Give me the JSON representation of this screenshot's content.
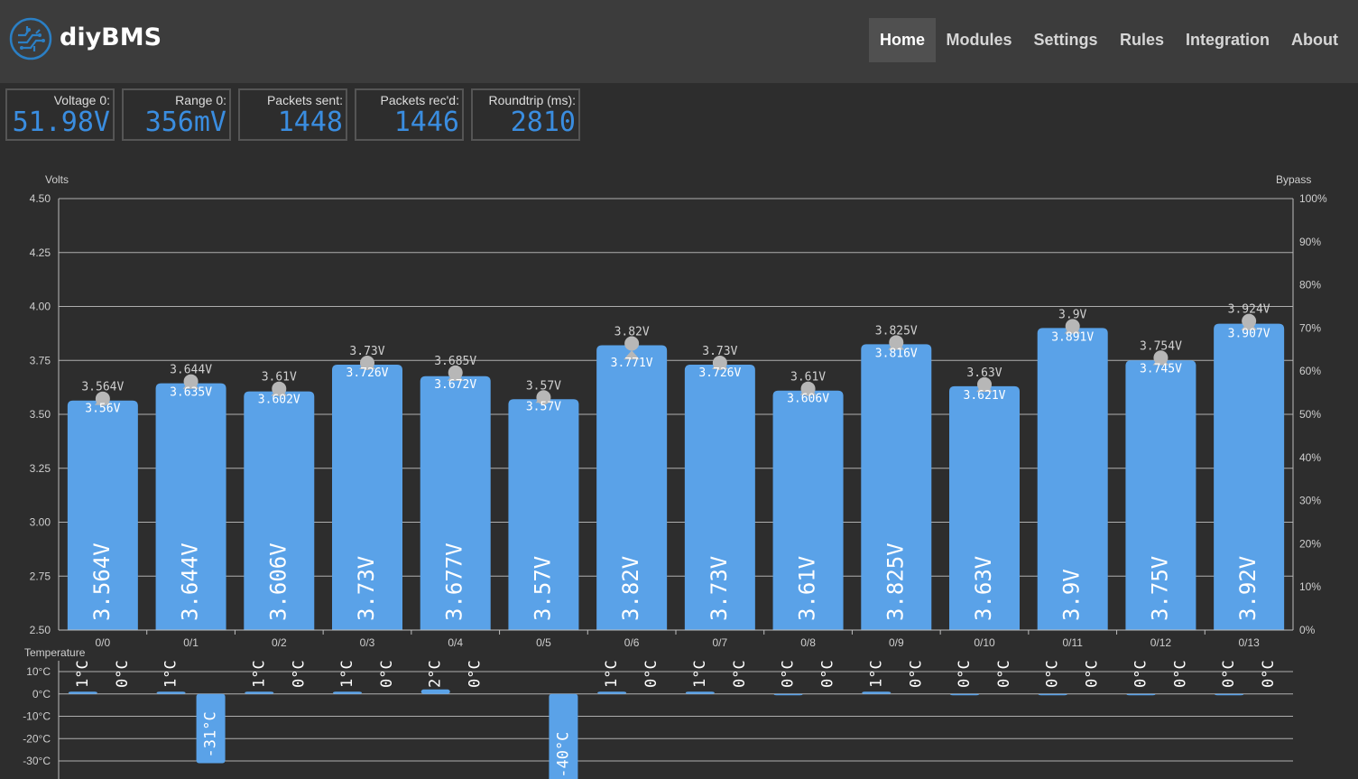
{
  "header": {
    "brand": "diyBMS",
    "nav": [
      {
        "label": "Home",
        "active": true
      },
      {
        "label": "Modules",
        "active": false
      },
      {
        "label": "Settings",
        "active": false
      },
      {
        "label": "Rules",
        "active": false
      },
      {
        "label": "Integration",
        "active": false
      },
      {
        "label": "About",
        "active": false
      }
    ]
  },
  "stats": [
    {
      "label": "Voltage 0:",
      "value": "51.98V"
    },
    {
      "label": "Range 0:",
      "value": "356mV"
    },
    {
      "label": "Packets sent:",
      "value": "1448"
    },
    {
      "label": "Packets rec'd:",
      "value": "1446"
    },
    {
      "label": "Roundtrip (ms):",
      "value": "2810"
    }
  ],
  "colors": {
    "bar": "#5aa2e8",
    "accent": "#3a8de0",
    "marker": "#b7b7b7",
    "grid": "#bdbdbd"
  },
  "chart_data": {
    "type": "bar",
    "ylabel": "Volts",
    "y2label": "Bypass",
    "ylim": [
      2.5,
      4.5
    ],
    "yticks": [
      "4.50",
      "4.25",
      "4.00",
      "3.75",
      "3.50",
      "3.25",
      "3.00",
      "2.75",
      "2.50"
    ],
    "y2lim": [
      0,
      100
    ],
    "y2ticks": [
      "100%",
      "90%",
      "80%",
      "70%",
      "60%",
      "50%",
      "40%",
      "30%",
      "20%",
      "10%",
      "0%"
    ],
    "categories": [
      "0/0",
      "0/1",
      "0/2",
      "0/3",
      "0/4",
      "0/5",
      "0/6",
      "0/7",
      "0/8",
      "0/9",
      "0/10",
      "0/11",
      "0/12",
      "0/13"
    ],
    "values": [
      3.564,
      3.644,
      3.606,
      3.73,
      3.677,
      3.57,
      3.82,
      3.73,
      3.61,
      3.825,
      3.63,
      3.9,
      3.75,
      3.92
    ],
    "bar_labels": [
      "3.564V",
      "3.644V",
      "3.606V",
      "3.73V",
      "3.677V",
      "3.57V",
      "3.82V",
      "3.73V",
      "3.61V",
      "3.825V",
      "3.63V",
      "3.9V",
      "3.75V",
      "3.92V"
    ],
    "max_values": [
      3.564,
      3.644,
      3.61,
      3.73,
      3.685,
      3.57,
      3.82,
      3.73,
      3.61,
      3.825,
      3.63,
      3.9,
      3.754,
      3.924
    ],
    "max_labels": [
      "3.564V",
      "3.644V",
      "3.61V",
      "3.73V",
      "3.685V",
      "3.57V",
      "3.82V",
      "3.73V",
      "3.61V",
      "3.825V",
      "3.63V",
      "3.9V",
      "3.754V",
      "3.924V"
    ],
    "min_values": [
      3.56,
      3.635,
      3.602,
      3.726,
      3.672,
      3.57,
      3.771,
      3.726,
      3.606,
      3.816,
      3.621,
      3.891,
      3.745,
      3.907
    ],
    "min_labels": [
      "3.56V",
      "3.635V",
      "3.602V",
      "3.726V",
      "3.672V",
      "3.57V",
      "3.771V",
      "3.726V",
      "3.606V",
      "3.816V",
      "3.621V",
      "3.891V",
      "3.745V",
      "3.907V"
    ],
    "temperature": {
      "label": "Temperature",
      "ylim": [
        -30,
        10
      ],
      "yticks": [
        "10°C",
        "0°C",
        "-10°C",
        "-20°C",
        "-30°C"
      ],
      "internal": [
        1,
        1,
        1,
        1,
        2,
        null,
        1,
        1,
        0,
        1,
        0,
        0,
        0,
        0
      ],
      "internal_labels": [
        "1°C",
        "1°C",
        "1°C",
        "1°C",
        "2°C",
        "",
        "1°C",
        "1°C",
        "0°C",
        "1°C",
        "0°C",
        "0°C",
        "0°C",
        "0°C"
      ],
      "external": [
        0,
        -31,
        0,
        0,
        0,
        -40,
        0,
        0,
        0,
        0,
        0,
        0,
        0,
        0
      ],
      "external_labels": [
        "0°C",
        "-31°C",
        "0°C",
        "0°C",
        "0°C",
        "-40°C",
        "0°C",
        "0°C",
        "0°C",
        "0°C",
        "0°C",
        "0°C",
        "0°C",
        "0°C"
      ]
    }
  }
}
